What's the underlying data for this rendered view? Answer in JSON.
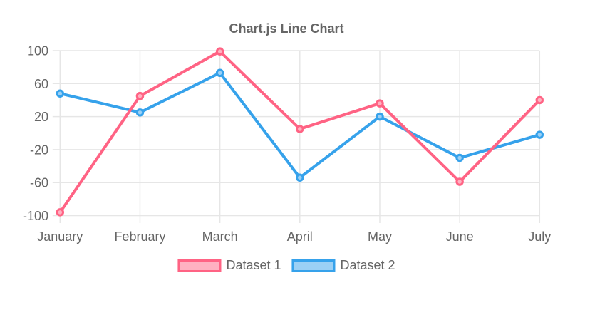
{
  "chart_data": {
    "type": "line",
    "title": "Chart.js Line Chart",
    "categories": [
      "January",
      "February",
      "March",
      "April",
      "May",
      "June",
      "July"
    ],
    "series": [
      {
        "name": "Dataset 1",
        "values": [
          -96,
          45,
          99,
          5,
          36,
          -59,
          40
        ],
        "line_color": "#ff6384",
        "fill_color": "#ffb1c1"
      },
      {
        "name": "Dataset 2",
        "values": [
          48,
          25,
          73,
          -54,
          20,
          -30,
          -2
        ],
        "line_color": "#36a2eb",
        "fill_color": "#9bd0f5"
      }
    ],
    "ylim": [
      -100,
      100
    ],
    "yticks": [
      100,
      60,
      20,
      -20,
      -60,
      -100
    ],
    "grid": true,
    "legend_position": "bottom",
    "colors": {
      "text": "#666666",
      "grid": "#e6e6e6",
      "background": "#ffffff"
    }
  }
}
